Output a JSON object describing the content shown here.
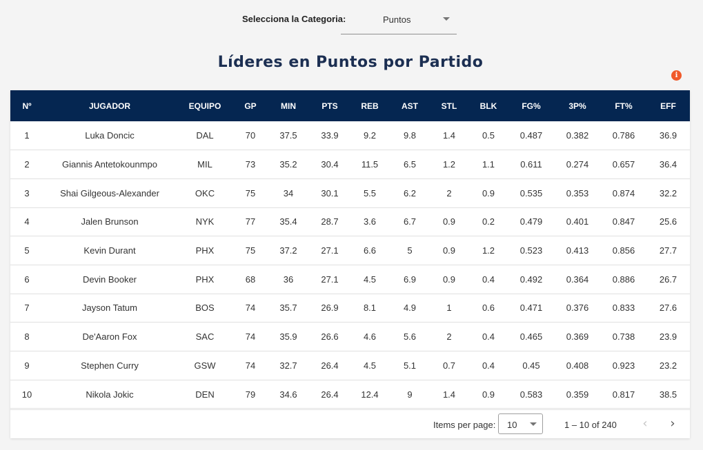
{
  "category": {
    "label": "Selecciona la Categoria:",
    "value": "Puntos"
  },
  "title": "Líderes en Puntos por Partido",
  "table": {
    "columns": [
      "Nº",
      "JUGADOR",
      "EQUIPO",
      "GP",
      "MIN",
      "PTS",
      "REB",
      "AST",
      "STL",
      "BLK",
      "FG%",
      "3P%",
      "FT%",
      "EFF"
    ],
    "rows": [
      [
        "1",
        "Luka Doncic",
        "DAL",
        "70",
        "37.5",
        "33.9",
        "9.2",
        "9.8",
        "1.4",
        "0.5",
        "0.487",
        "0.382",
        "0.786",
        "36.9"
      ],
      [
        "2",
        "Giannis Antetokounmpo",
        "MIL",
        "73",
        "35.2",
        "30.4",
        "11.5",
        "6.5",
        "1.2",
        "1.1",
        "0.611",
        "0.274",
        "0.657",
        "36.4"
      ],
      [
        "3",
        "Shai Gilgeous-Alexander",
        "OKC",
        "75",
        "34",
        "30.1",
        "5.5",
        "6.2",
        "2",
        "0.9",
        "0.535",
        "0.353",
        "0.874",
        "32.2"
      ],
      [
        "4",
        "Jalen Brunson",
        "NYK",
        "77",
        "35.4",
        "28.7",
        "3.6",
        "6.7",
        "0.9",
        "0.2",
        "0.479",
        "0.401",
        "0.847",
        "25.6"
      ],
      [
        "5",
        "Kevin Durant",
        "PHX",
        "75",
        "37.2",
        "27.1",
        "6.6",
        "5",
        "0.9",
        "1.2",
        "0.523",
        "0.413",
        "0.856",
        "27.7"
      ],
      [
        "6",
        "Devin Booker",
        "PHX",
        "68",
        "36",
        "27.1",
        "4.5",
        "6.9",
        "0.9",
        "0.4",
        "0.492",
        "0.364",
        "0.886",
        "26.7"
      ],
      [
        "7",
        "Jayson Tatum",
        "BOS",
        "74",
        "35.7",
        "26.9",
        "8.1",
        "4.9",
        "1",
        "0.6",
        "0.471",
        "0.376",
        "0.833",
        "27.6"
      ],
      [
        "8",
        "De'Aaron Fox",
        "SAC",
        "74",
        "35.9",
        "26.6",
        "4.6",
        "5.6",
        "2",
        "0.4",
        "0.465",
        "0.369",
        "0.738",
        "23.9"
      ],
      [
        "9",
        "Stephen Curry",
        "GSW",
        "74",
        "32.7",
        "26.4",
        "4.5",
        "5.1",
        "0.7",
        "0.4",
        "0.45",
        "0.408",
        "0.923",
        "23.2"
      ],
      [
        "10",
        "Nikola Jokic",
        "DEN",
        "79",
        "34.6",
        "26.4",
        "12.4",
        "9",
        "1.4",
        "0.9",
        "0.583",
        "0.359",
        "0.817",
        "38.5"
      ]
    ]
  },
  "paginator": {
    "items_per_page_label": "Items per page:",
    "items_per_page_value": "10",
    "range_label": "1 – 10 of 240",
    "prev_glyph": "‹",
    "next_glyph": "›"
  },
  "info_icon": {
    "glyph": "i",
    "color": "#f0592a"
  },
  "colors": {
    "header_bg": "#052651",
    "title": "#1c2f52"
  }
}
